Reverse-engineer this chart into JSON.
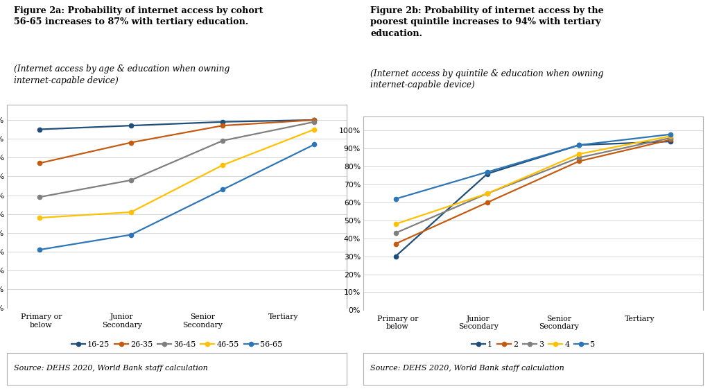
{
  "fig2a": {
    "title_bold_line1": "Figure 2a: Probability of internet access by cohort",
    "title_bold_line2": "56-65 increases to 87% with tertiary education.",
    "title_italic_line1": "(Internet access by age & education when owning",
    "title_italic_line2": "internet-capable device)",
    "x_labels": [
      "Primary or\nbelow",
      "Junior\nSecondary",
      "Senior\nSecondary",
      "Tertiary"
    ],
    "series": [
      {
        "label": "16-25",
        "color": "#1f4e79",
        "values": [
          0.95,
          0.97,
          0.99,
          1.0
        ]
      },
      {
        "label": "26-35",
        "color": "#c55a11",
        "values": [
          0.77,
          0.88,
          0.97,
          1.0
        ]
      },
      {
        "label": "36-45",
        "color": "#7f7f7f",
        "values": [
          0.59,
          0.68,
          0.89,
          0.99
        ]
      },
      {
        "label": "46-55",
        "color": "#ffc000",
        "values": [
          0.48,
          0.51,
          0.76,
          0.95
        ]
      },
      {
        "label": "56-65",
        "color": "#2e75b6",
        "values": [
          0.31,
          0.39,
          0.63,
          0.87
        ]
      }
    ],
    "source": "Source: DEHS 2020, World Bank staff calculation"
  },
  "fig2b": {
    "title_bold_line1": "Figure 2b: Probability of internet access by the",
    "title_bold_line2": "poorest quintile increases to 94% with tertiary",
    "title_bold_line3": "education.",
    "title_italic_line1": "(Internet access by quintile & education when owning",
    "title_italic_line2": "internet-capable device)",
    "x_labels": [
      "Primary or\nbelow",
      "Junior\nSecondary",
      "Senior\nSecondary",
      "Tertiary"
    ],
    "series": [
      {
        "label": "1",
        "color": "#1f4e79",
        "values": [
          0.3,
          0.76,
          0.92,
          0.94
        ]
      },
      {
        "label": "2",
        "color": "#c55a11",
        "values": [
          0.37,
          0.6,
          0.83,
          0.95
        ]
      },
      {
        "label": "3",
        "color": "#7f7f7f",
        "values": [
          0.43,
          0.65,
          0.85,
          0.96
        ]
      },
      {
        "label": "4",
        "color": "#ffc000",
        "values": [
          0.48,
          0.65,
          0.87,
          0.97
        ]
      },
      {
        "label": "5",
        "color": "#2e75b6",
        "values": [
          0.62,
          0.77,
          0.92,
          0.98
        ]
      }
    ],
    "source": "Source: DEHS 2020, World Bank staff calculation"
  },
  "bg": "#ffffff",
  "plot_bg": "#ffffff",
  "grid_color": "#d0d0d0",
  "border_color": "#b0b0b0"
}
